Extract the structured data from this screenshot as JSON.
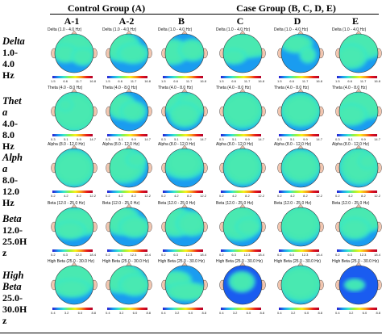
{
  "header": {
    "control_label": "Control Group (A)",
    "case_label": "Case Group (B, C, D, E)",
    "columns": [
      "A-1",
      "A-2",
      "B",
      "C",
      "D",
      "E"
    ]
  },
  "rows": [
    {
      "name": "Delta",
      "range": "1.0-4.0 Hz",
      "range_lines": [
        "1.0-",
        "4.0",
        "Hz"
      ],
      "name_lines": [
        "Delta"
      ],
      "band_title": "Delta (1.0 - 4.0 Hz)"
    },
    {
      "name": "Theta",
      "range": "4.0-8.0 Hz",
      "range_lines": [
        "4.0-",
        "8.0",
        "Hz"
      ],
      "name_lines": [
        "Thet",
        "a"
      ],
      "band_title": "Theta (4.0 - 8.0 Hz)"
    },
    {
      "name": "Alpha",
      "range": "8.0-12.0 Hz",
      "range_lines": [
        "8.0-",
        "12.0",
        "Hz"
      ],
      "name_lines": [
        "Alph",
        "a"
      ],
      "band_title": "Alpha (8.0 - 12.0 Hz)"
    },
    {
      "name": "Beta",
      "range": "12.0-25.0Hz",
      "range_lines": [
        "12.0-",
        "25.0H",
        "z"
      ],
      "name_lines": [
        "Beta"
      ],
      "band_title": "Beta (12.0 - 25.0 Hz)"
    },
    {
      "name": "High Beta",
      "range": "25.0-30.0Hz",
      "range_lines": [
        "25.0-",
        "30.0H",
        "z"
      ],
      "name_lines": [
        "High",
        "Beta"
      ],
      "band_title": "High Beta (25.0 - 30.0 Hz)"
    }
  ],
  "colorbar_ticks": [
    [
      "1.5",
      "6.6",
      "11.7",
      "16.8"
    ],
    [
      "0.3",
      "5.1",
      "9.9",
      "14.7"
    ],
    [
      "0.2",
      "4.2",
      "8.2",
      "12.2"
    ],
    [
      "0.2",
      "6.3",
      "12.3",
      "18.4"
    ],
    [
      "0.4",
      "3.2",
      "6.0",
      "8.8"
    ]
  ],
  "colors": {
    "low": "#2b1bd1",
    "mid_low": "#37e8c8",
    "mid": "#f8ef1a",
    "high": "#e81a1a"
  }
}
